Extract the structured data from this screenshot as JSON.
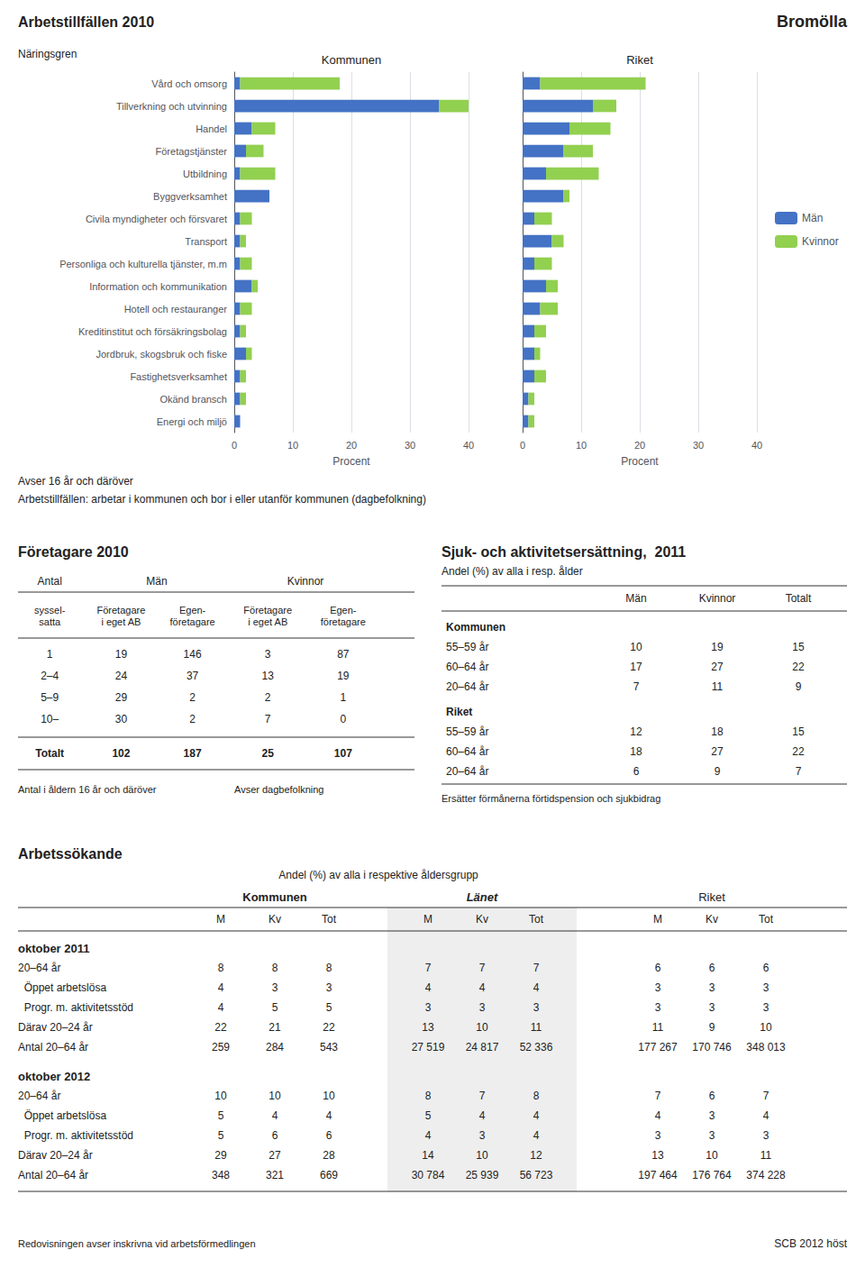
{
  "chart_data": [
    {
      "type": "bar",
      "orientation": "horizontal",
      "stacked": true,
      "grid": true,
      "title": "Kommunen",
      "xlabel": "Procent",
      "ylabel": "Näringsgren",
      "annotations": [
        "Bromölla",
        "Arbetstillfällen 2010",
        "Avser 16 år och däröver",
        "Arbetstillfällen: arbetar i kommunen och bor i eller utanför kommunen (dagbefolkning)"
      ],
      "categories": [
        "Vård och omsorg",
        "Tillverkning och utvinning",
        "Handel",
        "Företagstjänster",
        "Utbildning",
        "Byggverksamhet",
        "Civila myndigheter och försvaret",
        "Transport",
        "Personliga och kulturella tjänster, m.m",
        "Information och kommunikation",
        "Hotell och restauranger",
        "Kreditinstitut och försäkringsbolag",
        "Jordbruk, skogsbruk och fiske",
        "Fastighetsverksamhet",
        "Okänd bransch",
        "Energi och miljö"
      ],
      "series": [
        {
          "name": "Män",
          "color": "#4472c4",
          "values": [
            1,
            35,
            3,
            2,
            1,
            6,
            1,
            1,
            1,
            3,
            1,
            1,
            2,
            1,
            1,
            1
          ]
        },
        {
          "name": "Kvinnor",
          "color": "#92d050",
          "values": [
            17,
            5,
            4,
            3,
            6,
            0,
            2,
            1,
            2,
            1,
            2,
            1,
            1,
            1,
            1,
            0
          ]
        }
      ],
      "xlim": [
        0,
        40
      ],
      "xticks": [
        0,
        10,
        20,
        30,
        40
      ]
    },
    {
      "type": "bar",
      "orientation": "horizontal",
      "stacked": true,
      "grid": true,
      "title": "Riket",
      "xlabel": "Procent",
      "legend": "right",
      "tick_labels": "x",
      "categories": [
        "Vård och omsorg",
        "Tillverkning och utvinning",
        "Handel",
        "Företagstjänster",
        "Utbildning",
        "Byggverksamhet",
        "Civila myndigheter och försvaret",
        "Transport",
        "Personliga och kulturella tjänster, m.m",
        "Information och kommunikation",
        "Hotell och restauranger",
        "Kreditinstitut och försäkringsbolag",
        "Jordbruk, skogsbruk och fiske",
        "Fastighetsverksamhet",
        "Okänd bransch",
        "Energi och miljö"
      ],
      "series": [
        {
          "name": "Män",
          "color": "#4472c4",
          "values": [
            3,
            12,
            8,
            7,
            4,
            7,
            2,
            5,
            2,
            4,
            3,
            2,
            2,
            2,
            1,
            1
          ]
        },
        {
          "name": "Kvinnor",
          "color": "#92d050",
          "values": [
            18,
            4,
            7,
            5,
            9,
            1,
            3,
            2,
            3,
            2,
            3,
            2,
            1,
            2,
            1,
            1
          ]
        }
      ],
      "xlim": [
        0,
        40
      ],
      "xticks": [
        0,
        10,
        20,
        30,
        40
      ]
    },
    {
      "type": "table",
      "title": "Företagare 2010",
      "column_groups": [
        {
          "label": "Antal",
          "columns": [
            "syssel-\nsatta"
          ]
        },
        {
          "label": "Män",
          "columns": [
            "Företagare\ni eget AB",
            "Egen-\nföretagare"
          ]
        },
        {
          "label": "Kvinnor",
          "columns": [
            "Företagare\ni eget AB",
            "Egen-\nföretagare"
          ]
        }
      ],
      "rows": [
        [
          "1",
          "19",
          "146",
          "3",
          "87"
        ],
        [
          "2–4",
          "24",
          "37",
          "13",
          "19"
        ],
        [
          "5–9",
          "29",
          "2",
          "2",
          "1"
        ],
        [
          "10–",
          "30",
          "2",
          "7",
          "0"
        ],
        [
          "Totalt",
          "102",
          "187",
          "25",
          "107"
        ]
      ],
      "annotations": [
        "Antal i åldern 16 år och däröver",
        "Avser dagbefolkning"
      ]
    },
    {
      "type": "table",
      "title": "Sjuk- och aktivitetsersättning,  2011",
      "subtitle": "Andel (%) av alla i resp. ålder",
      "columns": [
        "Män",
        "Kvinnor",
        "Totalt"
      ],
      "row_groups": [
        {
          "label": "Kommunen",
          "rows": [
            [
              "55–59 år",
              "10",
              "19",
              "15"
            ],
            [
              "60–64 år",
              "17",
              "27",
              "22"
            ],
            [
              "20–64 år",
              "7",
              "11",
              "9"
            ]
          ]
        },
        {
          "label": "Riket",
          "rows": [
            [
              "55–59 år",
              "12",
              "18",
              "15"
            ],
            [
              "60–64 år",
              "18",
              "27",
              "22"
            ],
            [
              "20–64 år",
              "6",
              "9",
              "7"
            ]
          ]
        }
      ],
      "annotations": [
        "Ersätter förmånerna förtidspension och sjukbidrag"
      ]
    },
    {
      "type": "table",
      "title": "Arbetssökande",
      "subtitle": "Andel (%) av alla i respektive åldersgrupp",
      "column_groups": [
        {
          "label": "Kommunen",
          "columns": [
            "M",
            "Kv",
            "Tot"
          ]
        },
        {
          "label": "Länet",
          "columns": [
            "M",
            "Kv",
            "Tot"
          ]
        },
        {
          "label": "Riket",
          "columns": [
            "M",
            "Kv",
            "Tot"
          ]
        }
      ],
      "row_groups": [
        {
          "label": "oktober 2011",
          "rows": [
            [
              "20–64 år",
              "8",
              "8",
              "8",
              "7",
              "7",
              "7",
              "6",
              "6",
              "6"
            ],
            [
              "  Öppet arbetslösa",
              "4",
              "3",
              "3",
              "4",
              "4",
              "4",
              "3",
              "3",
              "3"
            ],
            [
              "  Progr. m. aktivitetsstöd",
              "4",
              "5",
              "5",
              "3",
              "3",
              "3",
              "3",
              "3",
              "3"
            ],
            [
              "Därav 20–24 år",
              "22",
              "21",
              "22",
              "13",
              "10",
              "11",
              "11",
              "9",
              "10"
            ],
            [
              "Antal 20–64 år",
              "259",
              "284",
              "543",
              "27 519",
              "24 817",
              "52 336",
              "177 267",
              "170 746",
              "348 013"
            ]
          ]
        },
        {
          "label": "oktober 2012",
          "rows": [
            [
              "20–64 år",
              "10",
              "10",
              "10",
              "8",
              "7",
              "8",
              "7",
              "6",
              "7"
            ],
            [
              "  Öppet arbetslösa",
              "5",
              "4",
              "4",
              "5",
              "4",
              "4",
              "4",
              "3",
              "4"
            ],
            [
              "  Progr. m. aktivitetsstöd",
              "5",
              "6",
              "6",
              "4",
              "3",
              "4",
              "3",
              "3",
              "3"
            ],
            [
              "Därav 20–24 år",
              "29",
              "27",
              "28",
              "14",
              "10",
              "12",
              "13",
              "10",
              "11"
            ],
            [
              "Antal 20–64 år",
              "348",
              "321",
              "669",
              "30 784",
              "25 939",
              "56 723",
              "197 464",
              "176 764",
              "374 228"
            ]
          ]
        }
      ],
      "annotations": [
        "Redovisningen avser inskrivna vid arbetsförmedlingen",
        "SCB 2012 höst"
      ]
    }
  ]
}
